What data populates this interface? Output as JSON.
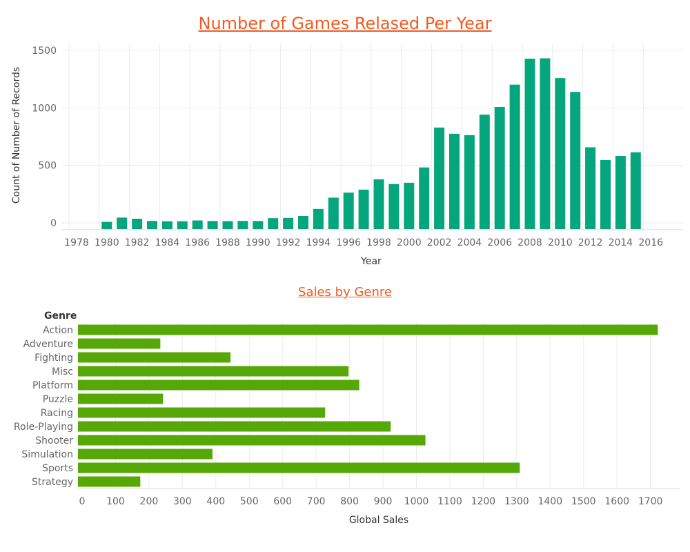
{
  "chart_data": [
    {
      "type": "bar",
      "title": "Number of Games Relased Per Year",
      "xlabel": "Year",
      "ylabel": "Count of Number of Records",
      "color": "#05a67e",
      "ylim": [
        0,
        1500
      ],
      "y_ticks": [
        "1500",
        "1000",
        "500",
        "0"
      ],
      "x_tick_labels": [
        "1978",
        "1980",
        "1982",
        "1984",
        "1986",
        "1988",
        "1990",
        "1992",
        "1994",
        "1996",
        "1998",
        "2000",
        "2002",
        "2004",
        "2006",
        "2008",
        "2010",
        "2012",
        "2014",
        "2016"
      ],
      "categories": [
        1980,
        1981,
        1982,
        1983,
        1984,
        1985,
        1986,
        1987,
        1988,
        1989,
        1990,
        1991,
        1992,
        1993,
        1994,
        1995,
        1996,
        1997,
        1998,
        1999,
        2000,
        2001,
        2002,
        2003,
        2004,
        2005,
        2006,
        2007,
        2008,
        2009,
        2010,
        2011,
        2012,
        2013,
        2014,
        2015
      ],
      "values": [
        9,
        46,
        36,
        17,
        14,
        14,
        21,
        16,
        15,
        17,
        16,
        41,
        43,
        60,
        121,
        219,
        263,
        289,
        379,
        338,
        349,
        482,
        829,
        775,
        763,
        941,
        1008,
        1202,
        1428,
        1431,
        1259,
        1139,
        657,
        546,
        582,
        614
      ],
      "grid": true
    },
    {
      "type": "bar",
      "orientation": "horizontal",
      "title": "Sales by Genre",
      "xlabel": "Global Sales",
      "ylabel": "Genre",
      "color": "#55a805",
      "xlim": [
        0,
        1800
      ],
      "x_ticks": [
        "0",
        "100",
        "200",
        "300",
        "400",
        "500",
        "600",
        "700",
        "800",
        "900",
        "1000",
        "1100",
        "1200",
        "1300",
        "1400",
        "1500",
        "1600",
        "1700"
      ],
      "categories": [
        "Action",
        "Adventure",
        "Fighting",
        "Misc",
        "Platform",
        "Puzzle",
        "Racing",
        "Role-Playing",
        "Shooter",
        "Simulation",
        "Sports",
        "Strategy"
      ],
      "values": [
        1722,
        234,
        444,
        797,
        829,
        242,
        727,
        923,
        1027,
        390,
        1309,
        174
      ],
      "grid": true
    }
  ]
}
